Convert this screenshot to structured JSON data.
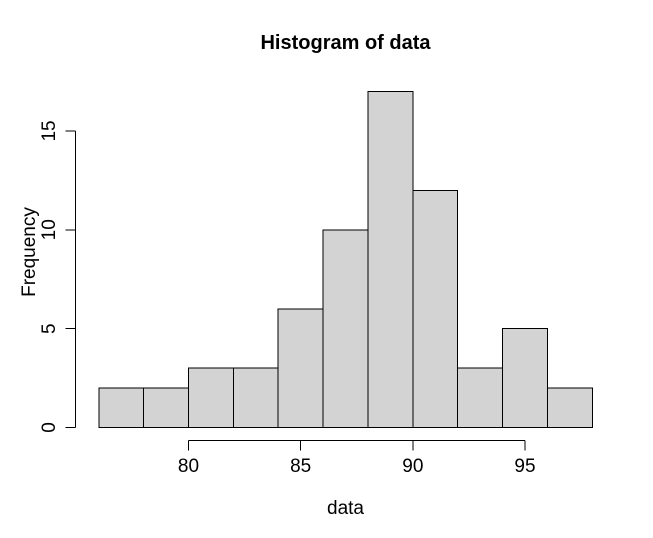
{
  "chart_data": {
    "type": "bar",
    "chart_kind": "histogram",
    "title": "Histogram of data",
    "xlabel": "data",
    "ylabel": "Frequency",
    "breaks": [
      76,
      78,
      80,
      82,
      84,
      86,
      88,
      90,
      92,
      94,
      96,
      98
    ],
    "counts": [
      2,
      2,
      3,
      3,
      6,
      10,
      17,
      12,
      3,
      5,
      2
    ],
    "x_ticks": [
      80,
      85,
      90,
      95
    ],
    "y_ticks": [
      0,
      5,
      10,
      15
    ],
    "xlim": [
      76,
      98
    ],
    "ylim": [
      0,
      17
    ],
    "bar_fill": "#d3d3d3",
    "bar_stroke": "#000000",
    "axis_color": "#000000",
    "text_color": "#000000",
    "background": "#ffffff",
    "grid": "off",
    "legend": "none"
  }
}
